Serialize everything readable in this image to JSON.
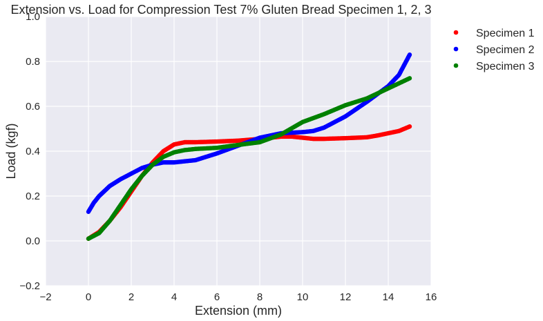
{
  "chart_data": {
    "type": "scatter",
    "title": "Extension vs. Load for Compression Test 7% Gluten Bread Specimen 1, 2, 3",
    "xlabel": "Extension (mm)",
    "ylabel": "Load (kgf)",
    "xlim": [
      -2,
      16
    ],
    "ylim": [
      -0.2,
      1.0
    ],
    "xticks": [
      -2,
      0,
      2,
      4,
      6,
      8,
      10,
      12,
      14,
      16
    ],
    "yticks": [
      -0.2,
      0.0,
      0.2,
      0.4,
      0.6,
      0.8,
      1.0
    ],
    "xtick_labels": [
      "−2",
      "0",
      "2",
      "4",
      "6",
      "8",
      "10",
      "12",
      "14",
      "16"
    ],
    "ytick_labels": [
      "−0.2",
      "0.0",
      "0.2",
      "0.4",
      "0.6",
      "0.8",
      "1.0"
    ],
    "grid": true,
    "legend_position": "outside-top-right",
    "background": "#eaeaf2",
    "series": [
      {
        "name": "Specimen 1",
        "color": "#ff0000",
        "x": [
          0,
          0.5,
          1,
          1.5,
          2,
          2.5,
          3,
          3.5,
          4,
          4.5,
          5,
          6,
          7,
          8,
          9,
          9.5,
          10,
          10.5,
          11,
          12,
          13,
          13.5,
          14,
          14.5,
          15
        ],
        "y": [
          0.01,
          0.04,
          0.09,
          0.15,
          0.22,
          0.29,
          0.35,
          0.4,
          0.43,
          0.44,
          0.44,
          0.443,
          0.447,
          0.455,
          0.465,
          0.465,
          0.46,
          0.455,
          0.455,
          0.458,
          0.462,
          0.47,
          0.48,
          0.49,
          0.51
        ]
      },
      {
        "name": "Specimen 2",
        "color": "#0000ff",
        "x": [
          0,
          0.25,
          0.5,
          1,
          1.5,
          2,
          2.5,
          3,
          3.5,
          4,
          5,
          6,
          7,
          8,
          9,
          10,
          10.5,
          11,
          12,
          13,
          14,
          14.5,
          15
        ],
        "y": [
          0.13,
          0.17,
          0.2,
          0.245,
          0.275,
          0.3,
          0.325,
          0.34,
          0.35,
          0.35,
          0.36,
          0.39,
          0.425,
          0.46,
          0.48,
          0.485,
          0.49,
          0.505,
          0.555,
          0.62,
          0.69,
          0.74,
          0.83
        ]
      },
      {
        "name": "Specimen 3",
        "color": "#008000",
        "x": [
          0,
          0.5,
          1,
          1.5,
          2,
          2.5,
          3,
          3.5,
          4,
          4.5,
          5,
          6,
          7,
          8,
          9,
          10,
          11,
          12,
          13,
          14,
          15
        ],
        "y": [
          0.01,
          0.035,
          0.09,
          0.16,
          0.23,
          0.29,
          0.34,
          0.375,
          0.395,
          0.405,
          0.41,
          0.415,
          0.428,
          0.44,
          0.475,
          0.53,
          0.565,
          0.605,
          0.635,
          0.68,
          0.725
        ]
      }
    ]
  }
}
